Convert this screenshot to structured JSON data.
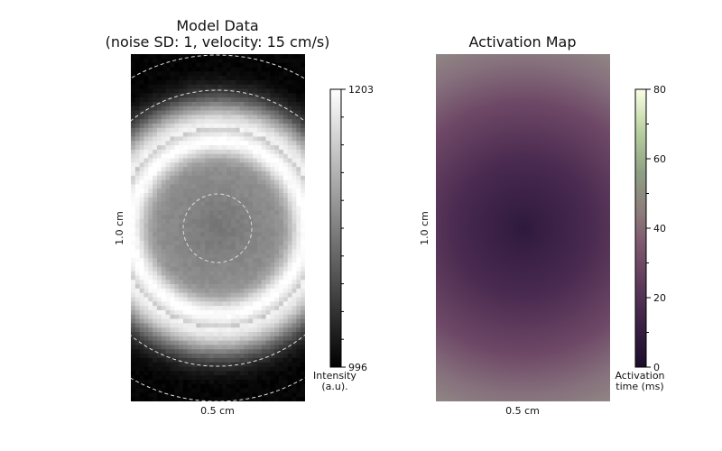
{
  "chart_data": [
    {
      "type": "heatmap",
      "title_line1": "Model Data",
      "title_line2": "(noise SD: 1, velocity: 15 cm/s)",
      "xlabel": "0.5 cm",
      "ylabel": "1.0 cm",
      "colormap": "gray",
      "colorbar": {
        "label_line1": "Intensity",
        "label_line2": "(a.u).",
        "min": 996,
        "max": 1203,
        "tick_labels": [
          "1203",
          "996"
        ]
      },
      "pattern": "concentric rings: bright ring at radius ~0.58 of half-width, dim center, dark outside",
      "grid": false
    },
    {
      "type": "heatmap",
      "title": "Activation Map",
      "xlabel": "0.5 cm",
      "ylabel": "1.0 cm",
      "colormap": "cubehelix-purple",
      "colorbar": {
        "label_line1": "Activation",
        "label_line2": "time (ms)",
        "min": 0,
        "max": 80,
        "ticks": [
          0,
          20,
          40,
          60,
          80
        ],
        "tick_labels": [
          "0",
          "20",
          "40",
          "60",
          "80"
        ]
      },
      "pattern": "radial: minimum (~10 ms) at center, increasing to ~40 ms at corners",
      "grid": false
    }
  ]
}
